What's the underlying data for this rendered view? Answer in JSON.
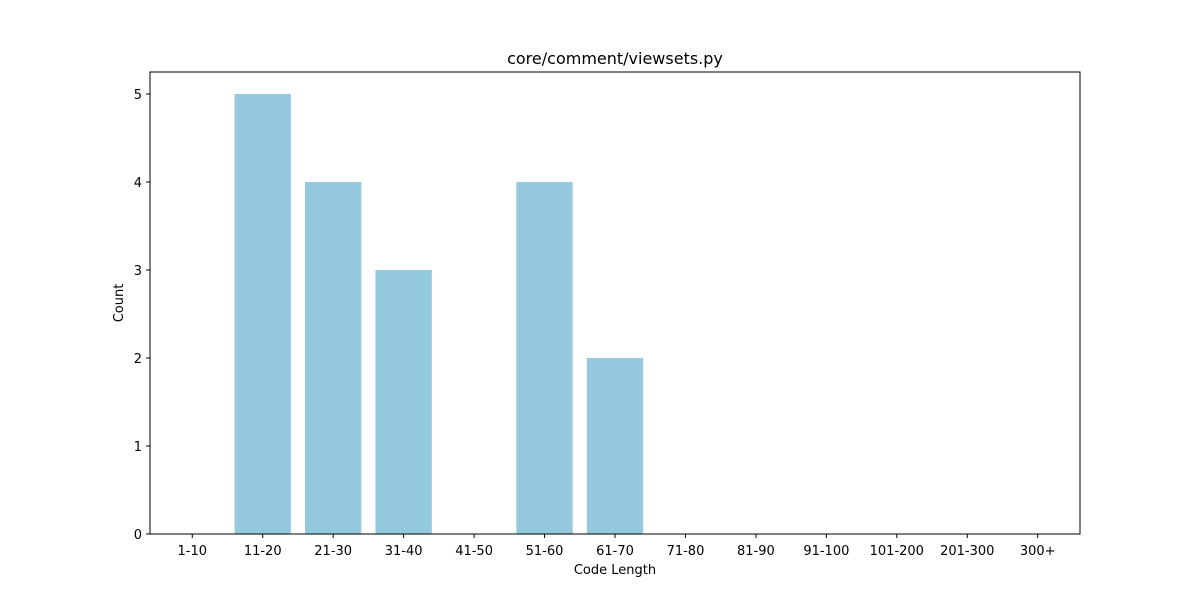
{
  "chart_data": {
    "type": "bar",
    "title": "core/comment/viewsets.py",
    "xlabel": "Code Length",
    "ylabel": "Count",
    "categories": [
      "1-10",
      "11-20",
      "21-30",
      "31-40",
      "41-50",
      "51-60",
      "61-70",
      "71-80",
      "81-90",
      "91-100",
      "101-200",
      "201-300",
      "300+"
    ],
    "values": [
      0,
      5,
      4,
      3,
      0,
      4,
      2,
      0,
      0,
      0,
      0,
      0,
      0
    ],
    "ylim": [
      0,
      5.25
    ],
    "yticks": [
      "0",
      "1",
      "2",
      "3",
      "4",
      "5"
    ],
    "bar_color": "#95c9de",
    "grid": false,
    "legend": "none"
  }
}
